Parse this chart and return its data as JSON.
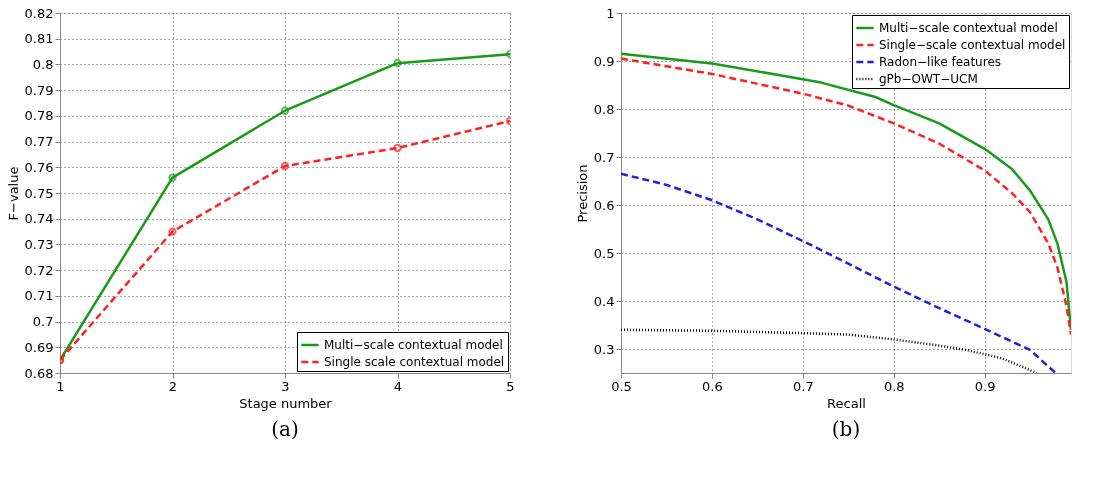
{
  "chart_data": [
    {
      "type": "line",
      "title": "(a)",
      "xlabel": "Stage number",
      "ylabel": "F−value",
      "x": [
        1,
        2,
        3,
        4,
        5
      ],
      "xlim": [
        1,
        5
      ],
      "xticks": [
        1,
        2,
        3,
        4,
        5
      ],
      "ylim": [
        0.68,
        0.82
      ],
      "yticks": [
        0.68,
        0.69,
        0.7,
        0.71,
        0.72,
        0.73,
        0.74,
        0.75,
        0.76,
        0.77,
        0.78,
        0.79,
        0.8,
        0.81,
        0.82
      ],
      "grid": true,
      "legend": "bottom right",
      "marker": "circle",
      "series": [
        {
          "name": "Multi−scale contextual model",
          "color": "#1a9a1a",
          "line_style": "solid",
          "values": [
            0.685,
            0.756,
            0.782,
            0.8005,
            0.804
          ]
        },
        {
          "name": "Single scale contextual model",
          "color": "#ff2020",
          "line_style": "dashed",
          "values": [
            0.685,
            0.735,
            0.7605,
            0.7675,
            0.778
          ]
        }
      ]
    },
    {
      "type": "line",
      "title": "(b)",
      "xlabel": "Recall",
      "ylabel": "Precision",
      "xlim": [
        0.5,
        0.995
      ],
      "xticks": [
        0.5,
        0.6,
        0.7,
        0.8,
        0.9
      ],
      "ylim": [
        0.25,
        1
      ],
      "yticks": [
        0.3,
        0.4,
        0.5,
        0.6,
        0.7,
        0.8,
        0.9,
        1
      ],
      "grid": true,
      "legend": "top right",
      "marker": "none",
      "series": [
        {
          "name": "Multi−scale contextual model",
          "color": "#1a9a1a",
          "line_style": "solid",
          "x": [
            0.5,
            0.6,
            0.7,
            0.72,
            0.78,
            0.8,
            0.85,
            0.9,
            0.93,
            0.95,
            0.97,
            0.98,
            0.99,
            0.995
          ],
          "values": [
            0.915,
            0.895,
            0.862,
            0.855,
            0.825,
            0.808,
            0.77,
            0.717,
            0.675,
            0.63,
            0.57,
            0.52,
            0.44,
            0.34
          ]
        },
        {
          "name": "Single−scale contextual model",
          "color": "#ff2020",
          "line_style": "dashed",
          "x": [
            0.5,
            0.6,
            0.7,
            0.75,
            0.8,
            0.85,
            0.9,
            0.93,
            0.95,
            0.97,
            0.98,
            0.99,
            0.995
          ],
          "values": [
            0.905,
            0.873,
            0.832,
            0.807,
            0.77,
            0.728,
            0.672,
            0.625,
            0.585,
            0.52,
            0.47,
            0.39,
            0.33
          ]
        },
        {
          "name": "Radon−like features",
          "color": "#2020e0",
          "line_style": "dashed",
          "x": [
            0.5,
            0.55,
            0.6,
            0.65,
            0.7,
            0.75,
            0.8,
            0.85,
            0.9,
            0.95,
            0.978
          ],
          "values": [
            0.665,
            0.642,
            0.61,
            0.57,
            0.525,
            0.478,
            0.43,
            0.385,
            0.342,
            0.298,
            0.25
          ]
        },
        {
          "name": "gPb−OWT−UCM",
          "color": "#000000",
          "line_style": "dotted",
          "x": [
            0.5,
            0.6,
            0.7,
            0.75,
            0.8,
            0.85,
            0.88,
            0.92,
            0.957
          ],
          "values": [
            0.34,
            0.338,
            0.333,
            0.33,
            0.32,
            0.307,
            0.298,
            0.28,
            0.25
          ]
        }
      ]
    }
  ]
}
